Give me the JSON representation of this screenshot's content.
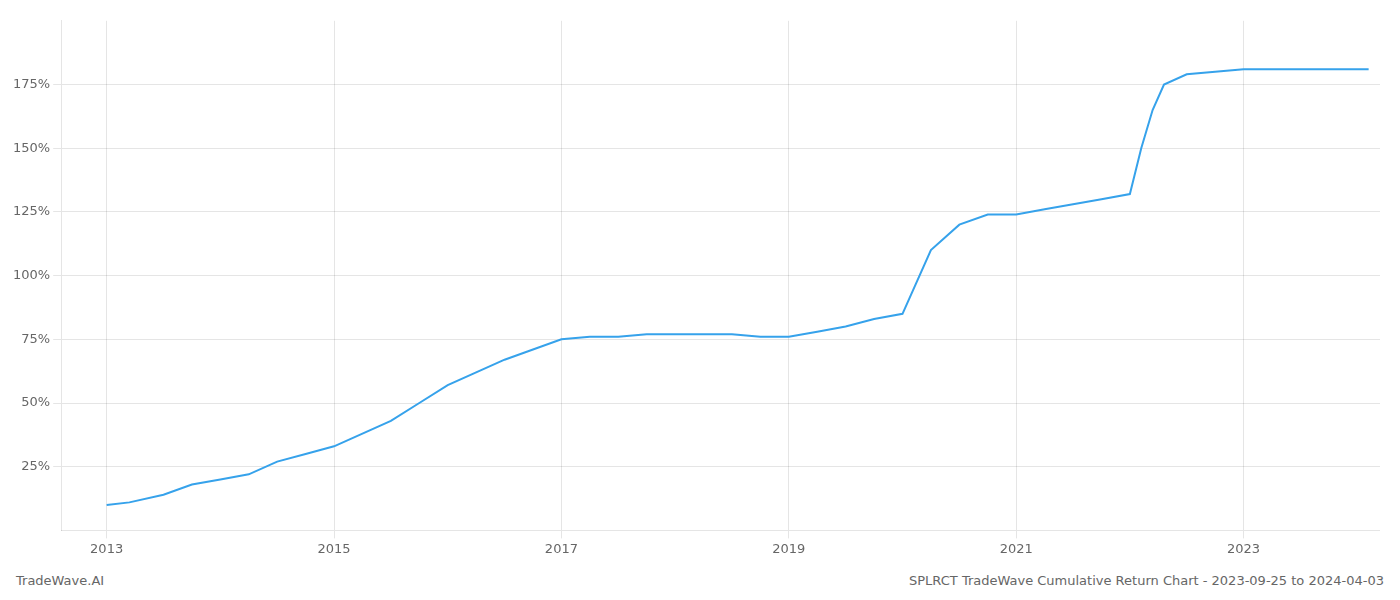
{
  "chart_data": {
    "type": "line",
    "title": "SPLRCT TradeWave Cumulative Return Chart - 2023-09-25 to 2024-04-03",
    "annotations": [
      "TradeWave.AI"
    ],
    "x": [
      2013.0,
      2013.2,
      2013.5,
      2013.75,
      2014.0,
      2014.25,
      2014.5,
      2014.75,
      2015.0,
      2015.25,
      2015.5,
      2015.75,
      2016.0,
      2016.25,
      2016.5,
      2016.75,
      2017.0,
      2017.25,
      2017.5,
      2017.75,
      2018.0,
      2018.25,
      2018.5,
      2018.75,
      2019.0,
      2019.25,
      2019.5,
      2019.75,
      2020.0,
      2020.25,
      2020.5,
      2020.75,
      2021.0,
      2021.25,
      2021.5,
      2021.75,
      2022.0,
      2022.1,
      2022.2,
      2022.3,
      2022.5,
      2022.75,
      2023.0,
      2023.5,
      2024.1
    ],
    "values": [
      10,
      11,
      14,
      18,
      20,
      22,
      27,
      30,
      33,
      38,
      43,
      50,
      57,
      62,
      67,
      71,
      75,
      76,
      76,
      77,
      77,
      77,
      77,
      76,
      76,
      78,
      80,
      83,
      85,
      110,
      120,
      124,
      124,
      126,
      128,
      130,
      132,
      150,
      165,
      175,
      179,
      180,
      181,
      181,
      181
    ],
    "xlim": [
      2012.6,
      2024.2
    ],
    "xticks": [
      2013,
      2015,
      2017,
      2019,
      2021,
      2023
    ],
    "ylim": [
      0,
      200
    ],
    "yticks": [
      {
        "value": 25,
        "label": "25%"
      },
      {
        "value": 50,
        "label": "50%"
      },
      {
        "value": 75,
        "label": "75%"
      },
      {
        "value": 100,
        "label": "100%"
      },
      {
        "value": 125,
        "label": "125%"
      },
      {
        "value": 150,
        "label": "150%"
      },
      {
        "value": 175,
        "label": "175%"
      }
    ],
    "grid": true
  }
}
